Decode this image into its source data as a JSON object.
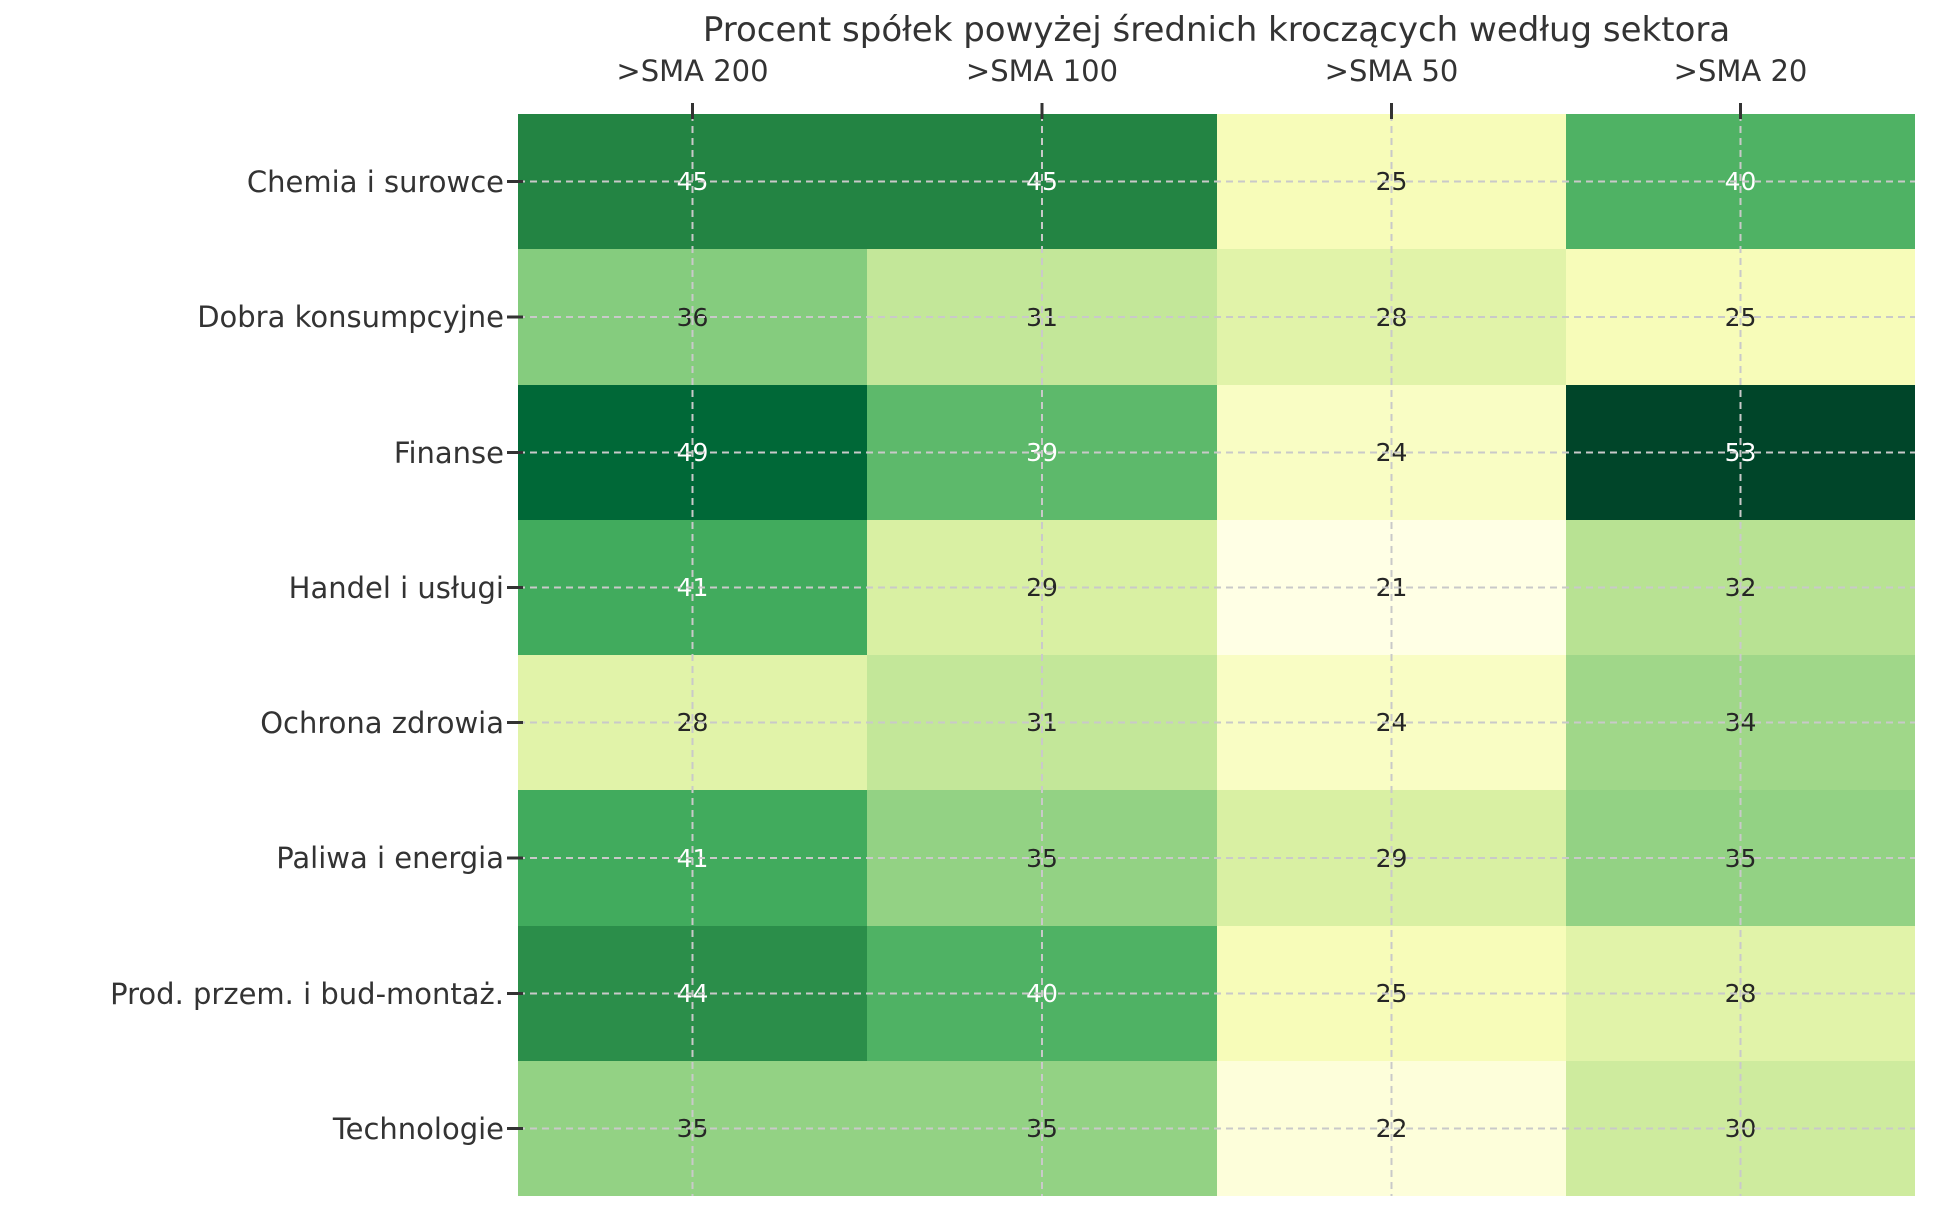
{
  "chart_data": {
    "type": "heatmap",
    "title": "Procent spółek powyżej średnich kroczących według sektora",
    "columns": [
      ">SMA 200",
      ">SMA 100",
      ">SMA 50",
      ">SMA 20"
    ],
    "rows": [
      "Chemia i surowce",
      "Dobra konsumpcyjne",
      "Finanse",
      "Handel i usługi",
      "Ochrona zdrowia",
      "Paliwa i energia",
      "Prod. przem. i bud-montaż.",
      "Technologie"
    ],
    "values": [
      [
        45,
        45,
        25,
        40
      ],
      [
        36,
        31,
        28,
        25
      ],
      [
        49,
        39,
        24,
        53
      ],
      [
        41,
        29,
        21,
        32
      ],
      [
        28,
        31,
        24,
        34
      ],
      [
        41,
        35,
        29,
        35
      ],
      [
        44,
        40,
        25,
        28
      ],
      [
        35,
        35,
        22,
        30
      ]
    ],
    "vmin": 21,
    "vmax": 53,
    "colormap": {
      "name": "YlGn",
      "stops": [
        "#ffffe5",
        "#f7fcb9",
        "#d9f0a3",
        "#addd8e",
        "#78c679",
        "#41ab5d",
        "#238443",
        "#006837",
        "#004529"
      ]
    },
    "annotation_colors": {
      "dark": "#262626",
      "light": "#ffffff"
    },
    "label_color": "#333333",
    "grid": {
      "style": "dashed",
      "color": "#c9c9c9",
      "tick_color": "#333333"
    },
    "background": "#ffffff",
    "legend": "none"
  }
}
